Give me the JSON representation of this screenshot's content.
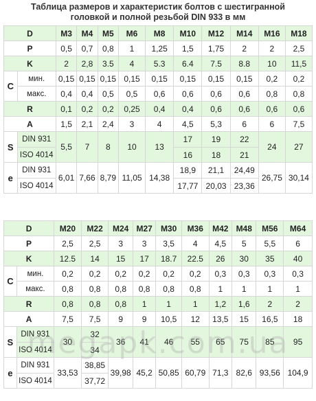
{
  "title_line1": "Таблица размеров и характеристик болтов с шестигранной",
  "title_line2": "головкой и полной резьбой DIN 933 в мм",
  "labels": {
    "D": "D",
    "P": "P",
    "K": "K",
    "C": "C",
    "min": "мин.",
    "max": "макс.",
    "R": "R",
    "A": "A",
    "S": "S",
    "e": "e",
    "din931": "DIN 931",
    "iso4014": "ISO 4014"
  },
  "table1": {
    "D": [
      "M3",
      "M4",
      "M5",
      "M6",
      "M8",
      "M10",
      "M12",
      "M14",
      "M16",
      "M18"
    ],
    "P": [
      "0,5",
      "0,7",
      "0,8",
      "1",
      "1,25",
      "1,5",
      "1,75",
      "2",
      "2",
      "2,5"
    ],
    "K": [
      "2",
      "2,8",
      "3.5",
      "4",
      "5.3",
      "6.4",
      "7.5",
      "8.8",
      "10",
      "11,5"
    ],
    "C_min": [
      "0,15",
      "0,15",
      "0,15",
      "0,15",
      "0,15",
      "0,15",
      "0,15",
      "0,15",
      "0,2",
      "0,2"
    ],
    "C_max": [
      "0,4",
      "0,4",
      "0,5",
      "0,5",
      "0,6",
      "0,6",
      "0,6",
      "0,6",
      "0,8",
      "0,8"
    ],
    "R": [
      "0,1",
      "0,2",
      "0,2",
      "0,25",
      "0,4",
      "0,4",
      "0,6",
      "0,6",
      "0,6",
      "0,6"
    ],
    "A": [
      "1,5",
      "2,1",
      "2,4",
      "3",
      "4",
      "4,5",
      "5,3",
      "6",
      "6",
      "7,5"
    ],
    "S_common": [
      "5,5",
      "7",
      "8",
      "10",
      "13"
    ],
    "S_din": [
      "17",
      "19",
      "22"
    ],
    "S_iso": [
      "16",
      "18",
      "21"
    ],
    "S_tail": [
      "24",
      "27"
    ],
    "e_common": [
      "6,01",
      "7,66",
      "8,79",
      "11,05",
      "14,38"
    ],
    "e_din": [
      "18,9",
      "21,1",
      "24,49"
    ],
    "e_iso": [
      "17,77",
      "20,03",
      "23,36"
    ],
    "e_tail": [
      "26,75",
      "30,14"
    ]
  },
  "table2": {
    "D": [
      "M20",
      "M22",
      "M24",
      "M27",
      "M30",
      "M36",
      "M42",
      "M48",
      "M56",
      "M64"
    ],
    "P": [
      "2,5",
      "2,5",
      "3",
      "3",
      "3,5",
      "4",
      "4,5",
      "5",
      "5,5",
      "6"
    ],
    "K": [
      "12.5",
      "14",
      "15",
      "17",
      "18.7",
      "22.5",
      "26",
      "30",
      "35",
      "40"
    ],
    "C_min": [
      "0,2",
      "0,2",
      "0,2",
      "0,2",
      "0,2",
      "0,2",
      "0,3",
      "0,3",
      "0,3",
      "0,3"
    ],
    "C_max": [
      "0,8",
      "0,8",
      "0,8",
      "0,8",
      "0,8",
      "0,8",
      "1",
      "1",
      "1",
      "1"
    ],
    "R": [
      "0,8",
      "0,8",
      "0,8",
      "1",
      "1",
      "1",
      "1,2",
      "1,6",
      "2",
      "2"
    ],
    "A": [
      "7,5",
      "7,5",
      "9",
      "9",
      "10,5",
      "12",
      "13,5",
      "15",
      "16,5",
      "18"
    ],
    "S_first": "30",
    "S_din": "32",
    "S_iso": "34",
    "S_tail": [
      "36",
      "41",
      "46",
      "55",
      "65",
      "75",
      "85",
      "95"
    ],
    "e_first": "33,53",
    "e_din": "38,85",
    "e_iso": "37,72",
    "e_tail": [
      "39,98",
      "45,2",
      "50,85",
      "60,79",
      "71,3",
      "82,6",
      "93,56",
      "104,9"
    ]
  },
  "watermark": "megapk.com.ua"
}
